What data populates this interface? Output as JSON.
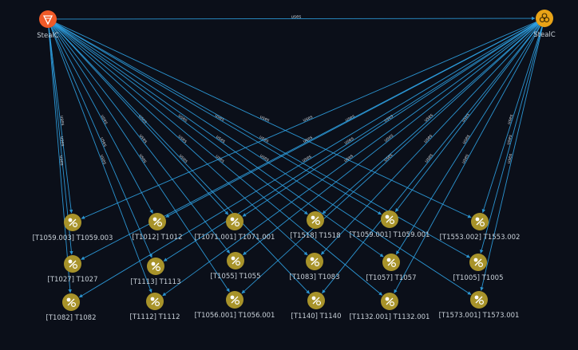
{
  "graph": {
    "edge_label": "uses",
    "source_nodes": [
      {
        "id": "malware",
        "label": "StealC",
        "icon": "malware-icon",
        "color": "#f05a28"
      },
      {
        "id": "intrusion",
        "label": "StealC",
        "icon": "biohazard-icon",
        "color": "#e8a317"
      }
    ],
    "attack_patterns": [
      {
        "id": "t1059_003",
        "label": "[T1059.003] T1059.003"
      },
      {
        "id": "t1012",
        "label": "[T1012] T1012"
      },
      {
        "id": "t1071_001",
        "label": "[T1071.001] T1071.001"
      },
      {
        "id": "t1518",
        "label": "[T1518] T1518"
      },
      {
        "id": "t1059_001",
        "label": "[T1059.001] T1059.001"
      },
      {
        "id": "t1553_002",
        "label": "[T1553.002] T1553.002"
      },
      {
        "id": "t1027",
        "label": "[T1027] T1027"
      },
      {
        "id": "t1113",
        "label": "[T1113] T1113"
      },
      {
        "id": "t1055",
        "label": "[T1055] T1055"
      },
      {
        "id": "t1083",
        "label": "[T1083] T1083"
      },
      {
        "id": "t1057",
        "label": "[T1057] T1057"
      },
      {
        "id": "t1005",
        "label": "[T1005] T1005"
      },
      {
        "id": "t1082",
        "label": "[T1082] T1082"
      },
      {
        "id": "t1112",
        "label": "[T1112] T1112"
      },
      {
        "id": "t1056_001",
        "label": "[T1056.001] T1056.001"
      },
      {
        "id": "t1140",
        "label": "[T1140] T1140"
      },
      {
        "id": "t1132_001",
        "label": "[T1132.001] T1132.001"
      },
      {
        "id": "t1573_001",
        "label": "[T1573.001] T1573.001"
      }
    ],
    "colors": {
      "background": "#0b0f19",
      "edge": "#2fa4e7",
      "attack_pattern": "#a8932a",
      "label": "#c9d1d9"
    }
  }
}
